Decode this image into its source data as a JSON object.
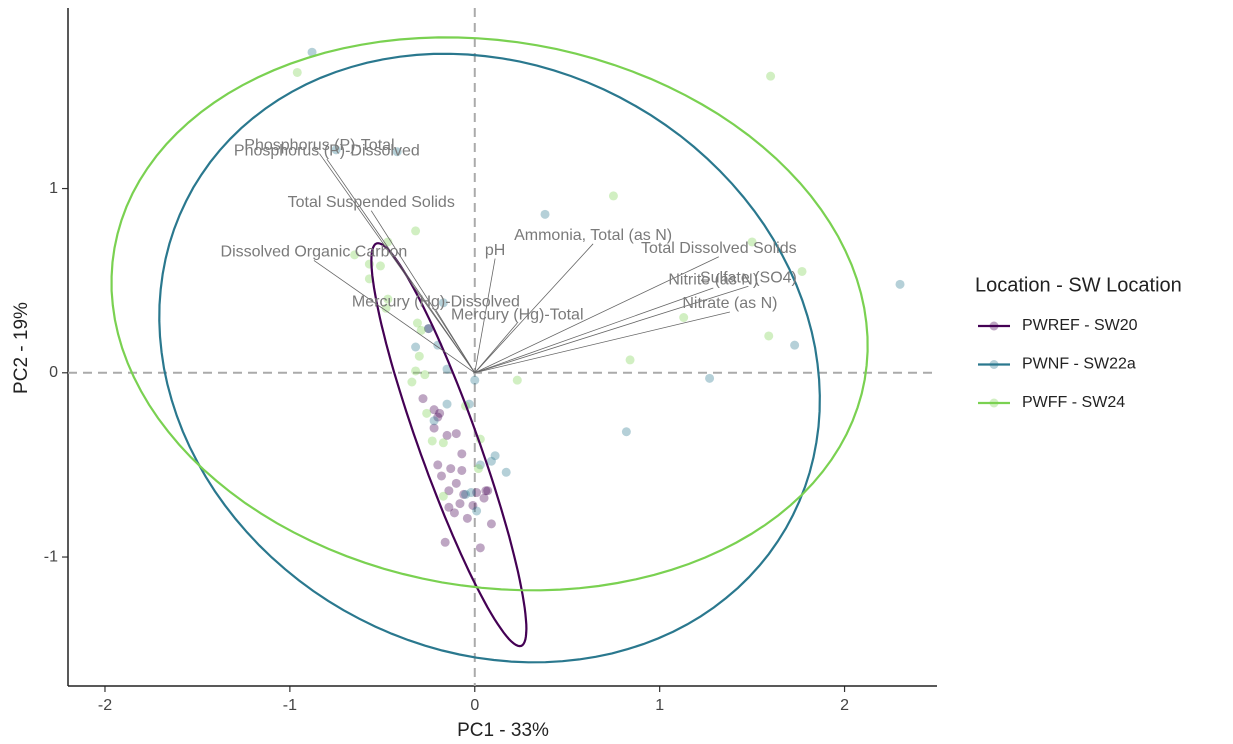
{
  "chart_data": {
    "type": "biplot",
    "x_label": "PC1 - 33%",
    "y_label": "PC2 - 19%",
    "xlim": [
      -2.2,
      2.5
    ],
    "ylim": [
      -1.7,
      1.98
    ],
    "xticks": [
      -2,
      -1,
      0,
      1,
      2
    ],
    "yticks": [
      -1,
      0,
      1
    ],
    "grid": false,
    "zero_lines": true,
    "legend_position": "right",
    "legend_title": "Location - SW Location",
    "series": [
      {
        "name": "PWREF - SW20",
        "color": "#440154",
        "x": [
          -0.25,
          -0.28,
          -0.19,
          -0.2,
          -0.22,
          -0.15,
          -0.1,
          -0.07,
          -0.2,
          -0.13,
          -0.07,
          -0.18,
          -0.1,
          -0.14,
          -0.06,
          0.01,
          0.07,
          0.05,
          -0.08,
          -0.14,
          -0.11,
          -0.01,
          -0.04,
          0.09,
          0.03,
          -0.16,
          -0.22,
          0.06
        ],
        "y": [
          0.24,
          -0.14,
          -0.22,
          -0.24,
          -0.3,
          -0.34,
          -0.33,
          -0.44,
          -0.5,
          -0.52,
          -0.53,
          -0.56,
          -0.6,
          -0.64,
          -0.66,
          -0.65,
          -0.64,
          -0.68,
          -0.71,
          -0.73,
          -0.76,
          -0.72,
          -0.79,
          -0.82,
          -0.95,
          -0.92,
          -0.2,
          -0.64
        ],
        "ellipse": {
          "cx": -0.14,
          "cy": -0.39,
          "rx": 1.16,
          "ry": 0.16,
          "angle": 109.7
        }
      },
      {
        "name": "PWNF - SW22a",
        "color": "#2A788E",
        "x": [
          -0.88,
          -0.75,
          -0.42,
          0.38,
          2.3,
          -0.17,
          -0.25,
          -0.32,
          -0.2,
          0.0,
          -0.15,
          -0.03,
          0.11,
          0.03,
          0.17,
          0.09,
          -0.02,
          0.01,
          0.82,
          1.27,
          1.73,
          -0.22,
          -0.15,
          -0.05
        ],
        "y": [
          1.74,
          1.21,
          1.2,
          0.86,
          0.48,
          0.38,
          0.24,
          0.14,
          0.15,
          -0.04,
          -0.17,
          -0.17,
          -0.45,
          -0.5,
          -0.54,
          -0.48,
          -0.65,
          -0.75,
          -0.32,
          -0.03,
          0.15,
          -0.26,
          0.02,
          -0.66
        ],
        "ellipse": {
          "cx": 0.08,
          "cy": 0.08,
          "rx": 1.85,
          "ry": 1.58,
          "angle": -30
        }
      },
      {
        "name": "PWFF - SW24",
        "color": "#7AD151",
        "x": [
          -0.96,
          1.6,
          0.75,
          1.5,
          1.77,
          -0.47,
          -0.32,
          -0.65,
          -0.57,
          -0.51,
          -0.57,
          -0.47,
          -0.31,
          -0.29,
          -0.3,
          -0.32,
          -0.27,
          -0.34,
          -0.26,
          -0.23,
          -0.17,
          -0.05,
          0.03,
          0.02,
          -0.17,
          0.23,
          0.84,
          1.59,
          1.13,
          -0.48
        ],
        "y": [
          1.63,
          1.61,
          0.96,
          0.71,
          0.55,
          0.71,
          0.77,
          0.64,
          0.59,
          0.58,
          0.51,
          0.4,
          0.27,
          0.23,
          0.09,
          0.01,
          -0.01,
          -0.05,
          -0.22,
          -0.37,
          -0.38,
          -0.18,
          -0.36,
          -0.52,
          -0.67,
          -0.04,
          0.07,
          0.2,
          0.3,
          0.35
        ],
        "ellipse": {
          "cx": 0.08,
          "cy": 0.32,
          "rx": 2.06,
          "ry": 1.48,
          "angle": -10
        }
      }
    ],
    "loadings": [
      {
        "name": "Phosphorus (P)-Total",
        "x": -0.84,
        "y": 1.19
      },
      {
        "name": "Phosphorus (P)-Dissolved",
        "x": -0.8,
        "y": 1.16
      },
      {
        "name": "Total Suspended Solids",
        "x": -0.56,
        "y": 0.88
      },
      {
        "name": "Dissolved Organic Carbon",
        "x": -0.87,
        "y": 0.61
      },
      {
        "name": "Mercury (Hg)-Dissolved",
        "x": -0.21,
        "y": 0.34
      },
      {
        "name": "Mercury (Hg)-Total",
        "x": 0.23,
        "y": 0.27
      },
      {
        "name": "Ammonia, Total (as N)",
        "x": 0.64,
        "y": 0.7
      },
      {
        "name": "pH",
        "x": 0.11,
        "y": 0.62
      },
      {
        "name": "Total Dissolved Solids",
        "x": 1.32,
        "y": 0.63
      },
      {
        "name": "Sulfate (SO4)",
        "x": 1.48,
        "y": 0.47
      },
      {
        "name": "Nitrite (as N)",
        "x": 1.29,
        "y": 0.46
      },
      {
        "name": "Nitrate (as N)",
        "x": 1.38,
        "y": 0.33
      }
    ]
  }
}
